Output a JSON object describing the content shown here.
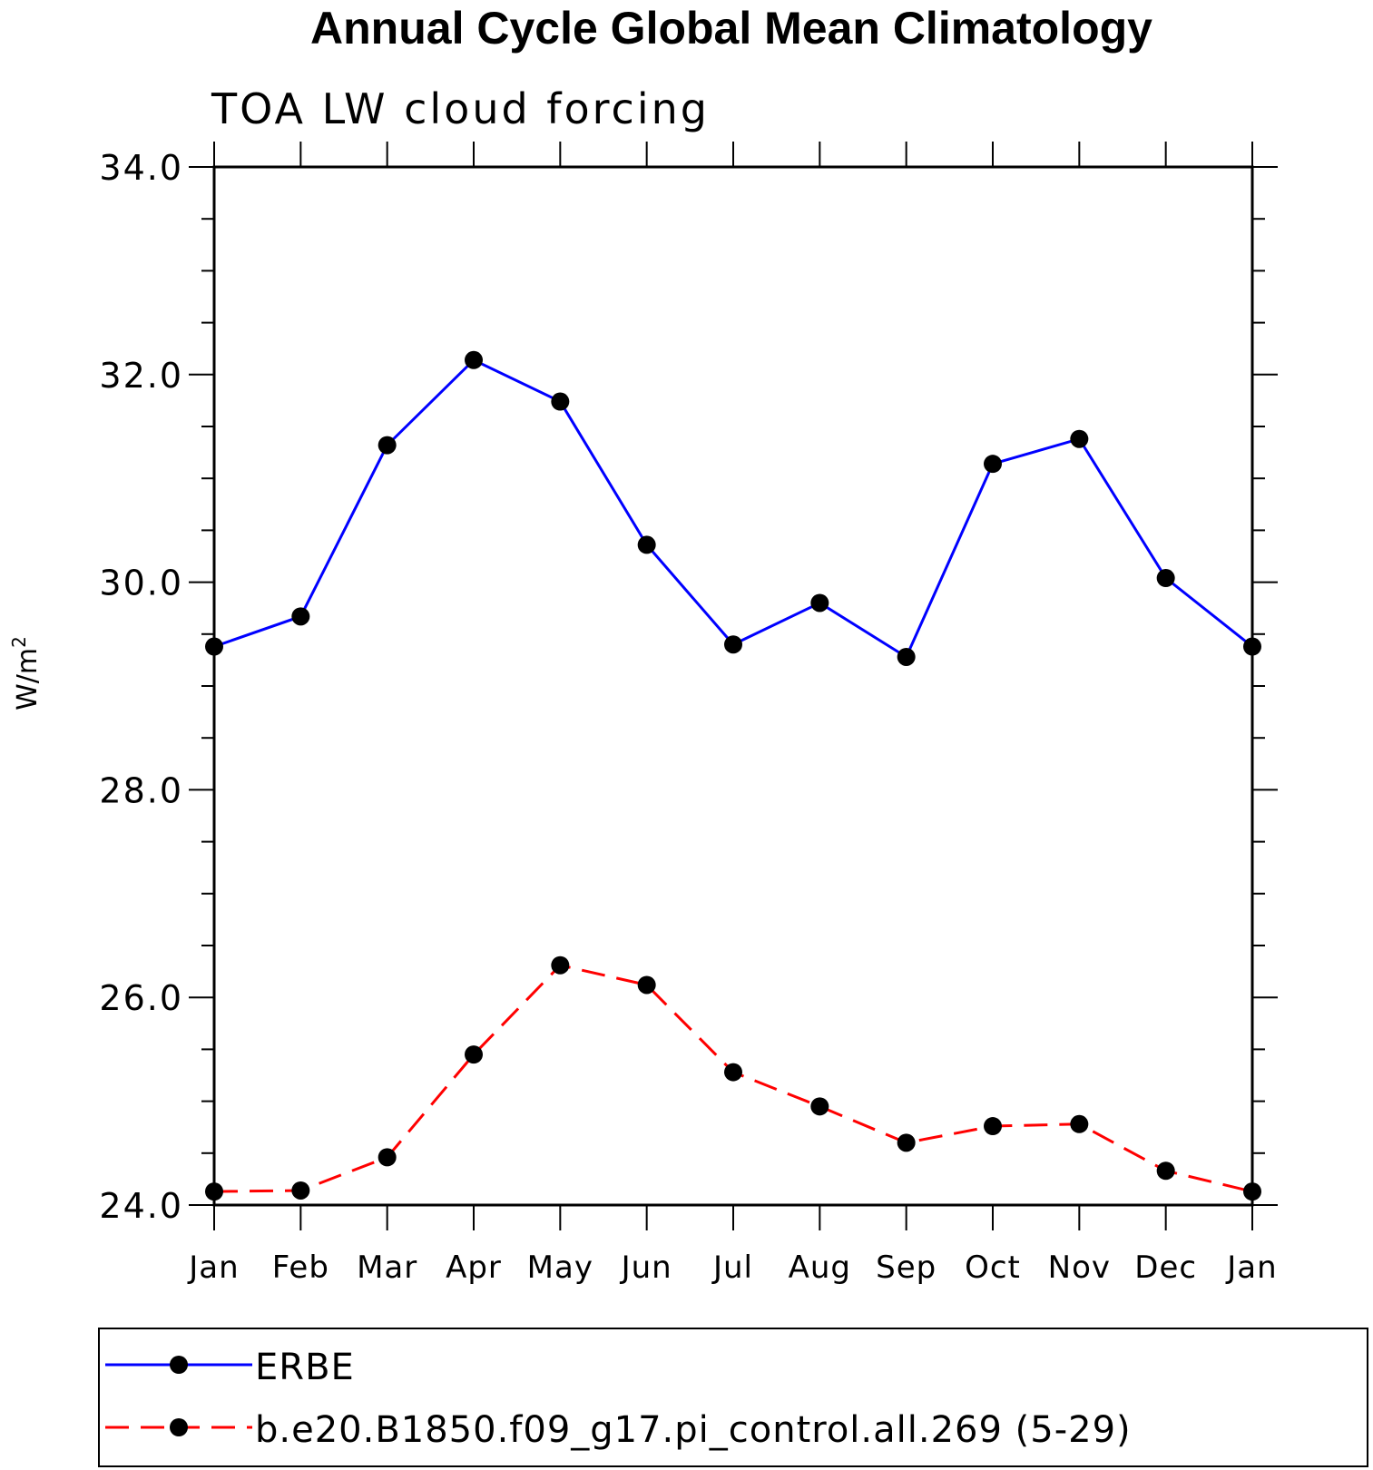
{
  "chart_data": {
    "type": "line",
    "title": "Annual Cycle Global Mean Climatology",
    "subtitle": "TOA LW cloud forcing",
    "xlabel": "",
    "ylabel": "W/m",
    "ylabel_superscript": "2",
    "ylim": [
      24.0,
      34.0
    ],
    "yticks": [
      "24.0",
      "26.0",
      "28.0",
      "30.0",
      "32.0",
      "34.0"
    ],
    "ytick_values": [
      24,
      26,
      28,
      30,
      32,
      34
    ],
    "categories": [
      "Jan",
      "Feb",
      "Mar",
      "Apr",
      "May",
      "Jun",
      "Jul",
      "Aug",
      "Sep",
      "Oct",
      "Nov",
      "Dec",
      "Jan"
    ],
    "series": [
      {
        "name": "ERBE",
        "color": "#0000ff",
        "dash": "solid",
        "marker": "filled-circle",
        "values": [
          29.38,
          29.67,
          31.32,
          32.14,
          31.74,
          30.36,
          29.4,
          29.8,
          29.28,
          31.14,
          31.38,
          30.04,
          29.38
        ]
      },
      {
        "name": "b.e20.B1850.f09_g17.pi_control.all.269 (5-29)",
        "color": "#ff0000",
        "dash": "dashed",
        "marker": "filled-circle",
        "values": [
          24.13,
          24.14,
          24.46,
          25.45,
          26.31,
          26.12,
          25.28,
          24.95,
          24.6,
          24.76,
          24.78,
          24.33,
          24.13
        ]
      }
    ],
    "legend_placement": "bottom"
  }
}
